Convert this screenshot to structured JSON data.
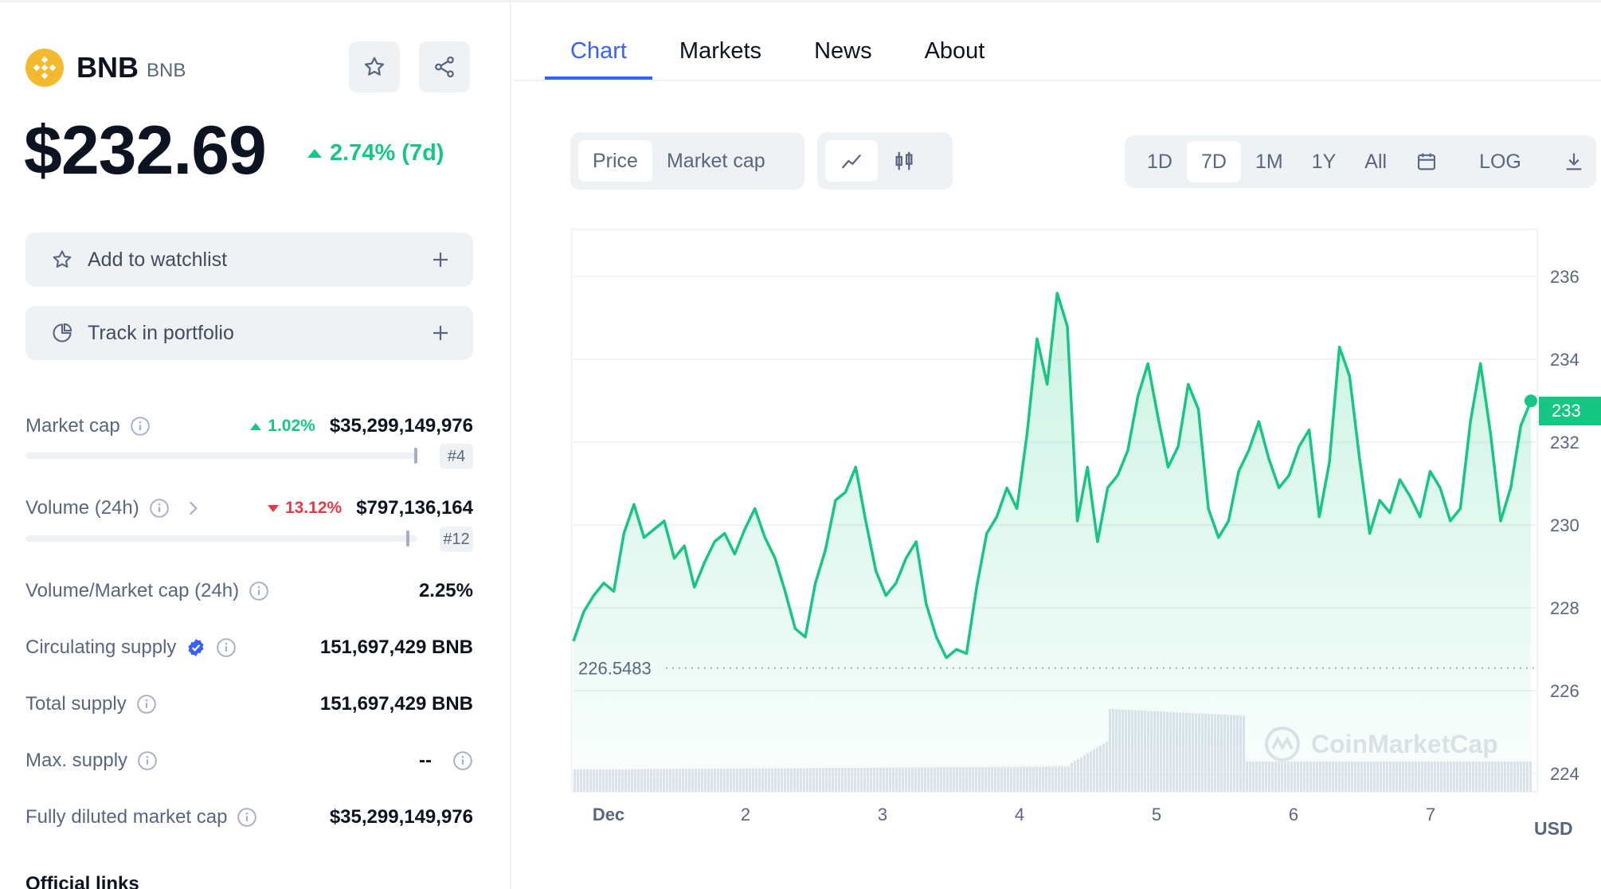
{
  "coin": {
    "name": "BNB",
    "symbol": "BNB"
  },
  "price": {
    "value": "$232.69",
    "change": "2.74% (7d)"
  },
  "actions": {
    "watchlist": "Add to watchlist",
    "portfolio": "Track in portfolio"
  },
  "stats": {
    "market_cap": {
      "label": "Market cap",
      "change": "1.02%",
      "value": "$35,299,149,976",
      "rank": "#4"
    },
    "volume": {
      "label": "Volume (24h)",
      "change": "13.12%",
      "value": "$797,136,164",
      "rank": "#12"
    },
    "vol_mcap": {
      "label": "Volume/Market cap (24h)",
      "value": "2.25%"
    },
    "circulating": {
      "label": "Circulating supply",
      "value": "151,697,429 BNB"
    },
    "total": {
      "label": "Total supply",
      "value": "151,697,429 BNB"
    },
    "max": {
      "label": "Max. supply",
      "value": "--"
    },
    "fdmc": {
      "label": "Fully diluted market cap",
      "value": "$35,299,149,976"
    }
  },
  "official_links_title": "Official links",
  "tabs": [
    "Chart",
    "Markets",
    "News",
    "About"
  ],
  "chart_controls": {
    "type_toggle": [
      "Price",
      "Market cap"
    ],
    "ranges": [
      "1D",
      "7D",
      "1M",
      "1Y",
      "All"
    ],
    "log": "LOG",
    "active_range": "7D"
  },
  "currency": "USD",
  "watermark": "CoinMarketCap",
  "colors": {
    "accent": "#3861fb",
    "up": "#16c784",
    "down": "#ea3943"
  },
  "chart_data": {
    "type": "line",
    "x_ticks": [
      "Dec",
      "2",
      "3",
      "4",
      "5",
      "6",
      "7"
    ],
    "y_ticks": [
      224,
      226,
      228,
      230,
      232,
      234,
      236
    ],
    "ylim": [
      223.6,
      237.1
    ],
    "current_price_label": "233",
    "baseline_label": "226.5483",
    "baseline": 226.5483,
    "price_points": [
      227.2,
      227.9,
      228.3,
      228.6,
      228.4,
      229.8,
      230.5,
      229.7,
      229.9,
      230.1,
      229.2,
      229.5,
      228.5,
      229.1,
      229.6,
      229.8,
      229.3,
      229.9,
      230.4,
      229.7,
      229.2,
      228.4,
      227.5,
      227.3,
      228.6,
      229.4,
      230.6,
      230.8,
      231.4,
      230.1,
      228.9,
      228.3,
      228.6,
      229.2,
      229.6,
      228.1,
      227.3,
      226.8,
      227.0,
      226.9,
      228.5,
      229.8,
      230.2,
      230.9,
      230.4,
      232.2,
      234.5,
      233.4,
      235.6,
      234.8,
      230.1,
      231.4,
      229.6,
      230.9,
      231.2,
      231.8,
      233.1,
      233.9,
      232.6,
      231.4,
      231.9,
      233.4,
      232.8,
      230.4,
      229.7,
      230.1,
      231.3,
      231.8,
      232.5,
      231.6,
      230.9,
      231.2,
      231.9,
      232.3,
      230.2,
      231.5,
      234.3,
      233.6,
      231.6,
      229.8,
      230.6,
      230.3,
      231.1,
      230.7,
      230.2,
      231.3,
      230.9,
      230.1,
      230.4,
      232.5,
      233.9,
      232.2,
      230.1,
      230.9,
      232.4,
      233.0
    ]
  }
}
